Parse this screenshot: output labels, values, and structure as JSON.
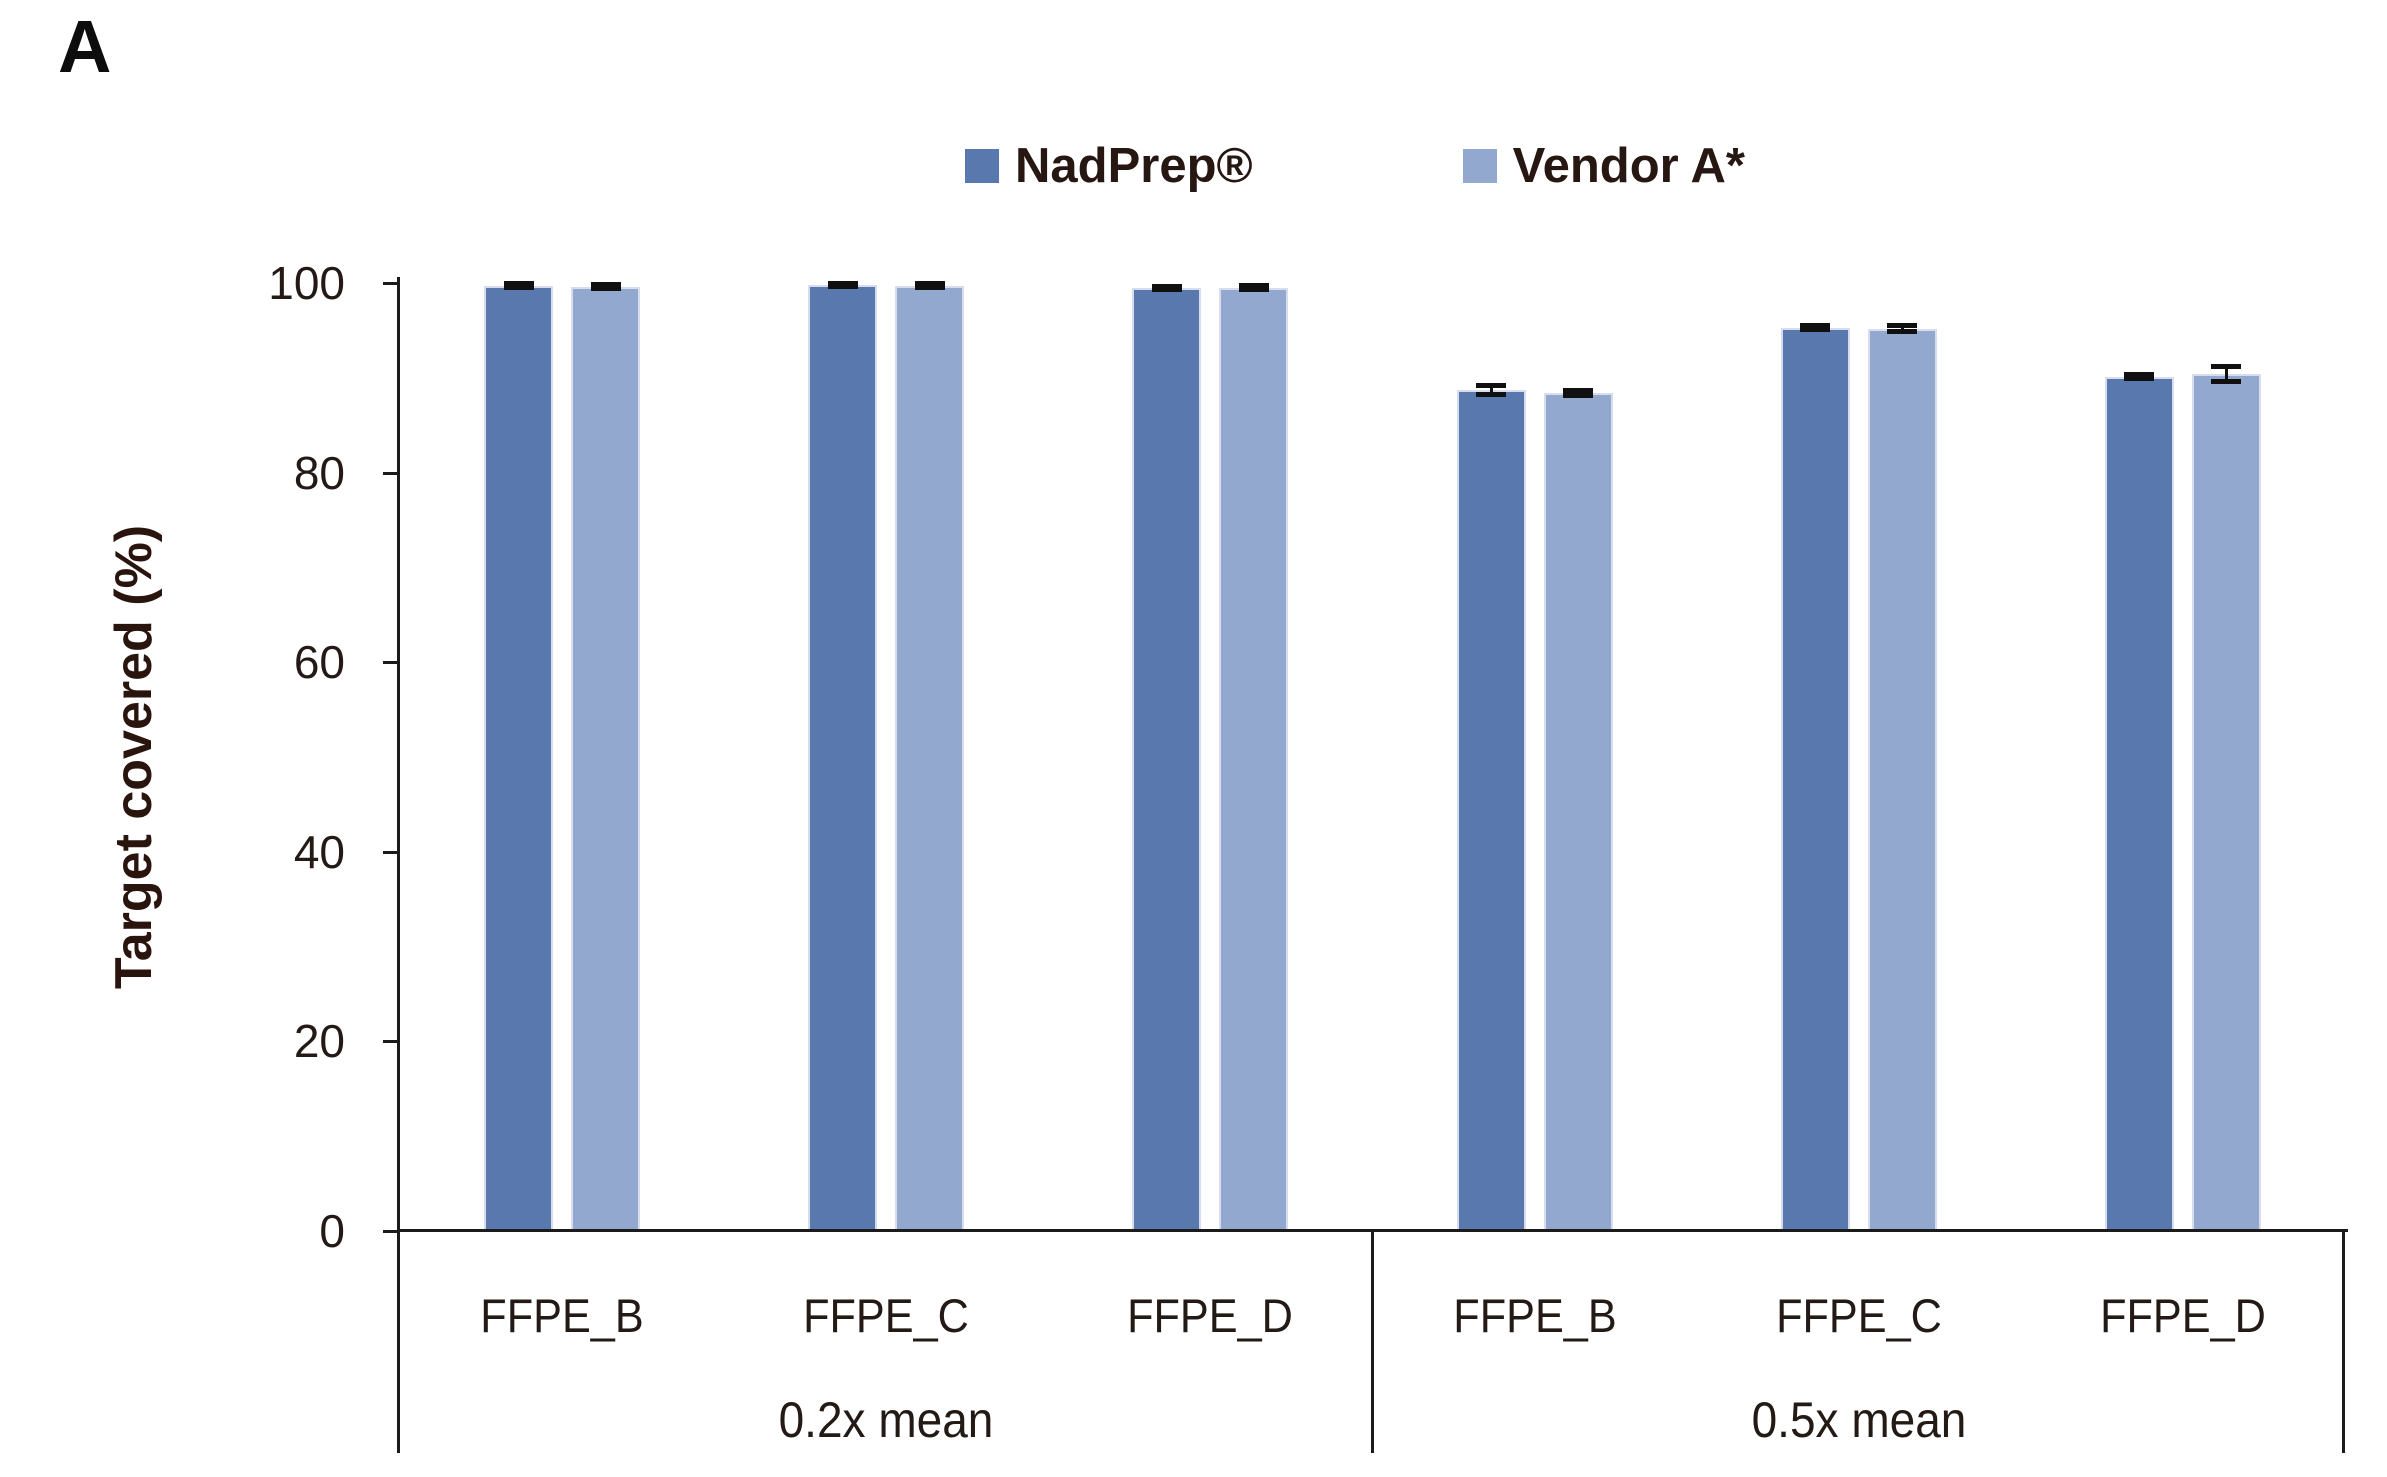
{
  "panel_label": "A",
  "legend": {
    "items": [
      {
        "label": "NadPrep®",
        "color": "#5878ae"
      },
      {
        "label": "Vendor A*",
        "color": "#92a8ce"
      }
    ]
  },
  "y_axis": {
    "label": "Target covered (%)"
  },
  "colors": {
    "series_nadprep": "#5878ae",
    "series_vendor_a": "#92a8ce",
    "axis": "#1b1b1b",
    "error_bar": "#101010",
    "text": "#241a15"
  },
  "chart_data": {
    "type": "bar",
    "title": "",
    "xlabel": "",
    "ylabel": "Target covered (%)",
    "ylim": [
      0,
      100
    ],
    "yticks": [
      0,
      20,
      40,
      60,
      80,
      100
    ],
    "grid": false,
    "legend_position": "top-center",
    "groups": [
      {
        "label": "0.2x mean",
        "categories": [
          "FFPE_B",
          "FFPE_C",
          "FFPE_D"
        ]
      },
      {
        "label": "0.5x mean",
        "categories": [
          "FFPE_B",
          "FFPE_C",
          "FFPE_D"
        ]
      }
    ],
    "categories_flat": [
      "FFPE_B",
      "FFPE_C",
      "FFPE_D",
      "FFPE_B",
      "FFPE_C",
      "FFPE_D"
    ],
    "series": [
      {
        "name": "NadPrep®",
        "color": "#5878ae",
        "values": [
          99.7,
          99.8,
          99.5,
          88.7,
          95.3,
          90.1
        ],
        "errors": [
          0.2,
          0.15,
          0.15,
          0.5,
          0.2,
          0.2
        ]
      },
      {
        "name": "Vendor A*",
        "color": "#92a8ce",
        "values": [
          99.6,
          99.7,
          99.5,
          88.4,
          95.2,
          90.4
        ],
        "errors": [
          0.2,
          0.2,
          0.2,
          0.3,
          0.3,
          0.8
        ]
      }
    ]
  }
}
